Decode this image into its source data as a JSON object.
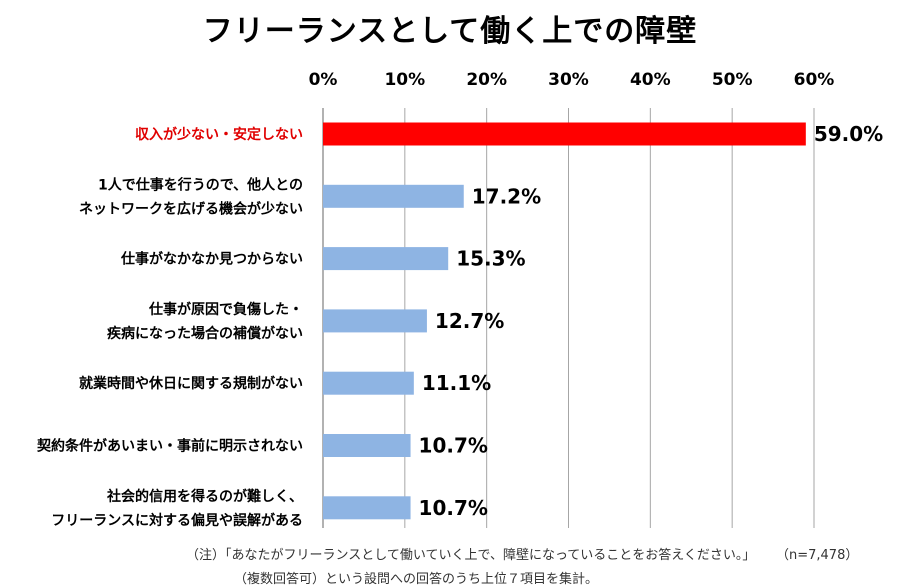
{
  "title": "フリーランスとして働く上での障壁",
  "chart_data": {
    "type": "bar",
    "orientation": "horizontal",
    "title": "フリーランスとして働く上での障壁",
    "categories": [
      [
        "収入が少ない・安定しない"
      ],
      [
        "1人で仕事を行うので、他人との",
        "ネットワークを広げる機会が少ない"
      ],
      [
        "仕事がなかなか見つからない"
      ],
      [
        "仕事が原因で負傷した・",
        "疾病になった場合の補償がない"
      ],
      [
        "就業時間や休日に関する規制がない"
      ],
      [
        "契約条件があいまい・事前に明示されない"
      ],
      [
        "社会的信用を得るのが難しく、",
        "フリーランスに対する偏見や誤解がある"
      ]
    ],
    "values": [
      59.0,
      17.2,
      15.3,
      12.7,
      11.1,
      10.7,
      10.7
    ],
    "value_labels": [
      "59.0%",
      "17.2%",
      "15.3%",
      "12.7%",
      "11.1%",
      "10.7%",
      "10.7%"
    ],
    "xlim": [
      0,
      60
    ],
    "xticks": [
      0,
      10,
      20,
      30,
      40,
      50,
      60
    ],
    "xtick_labels": [
      "0%",
      "10%",
      "20%",
      "30%",
      "40%",
      "50%",
      "60%"
    ],
    "axis_position": "top",
    "grid": true,
    "highlight_index": 0,
    "colors": {
      "bar": "#8eb4e3",
      "highlight": "#ff0000",
      "highlight_label": "#e00000",
      "grid": "#a6a6a6"
    }
  },
  "notes": {
    "line1": "（注）「あなたがフリーランスとして働いていく上で、障壁になっていることをお答えください。」",
    "line2": "（複数回答可）という設問への回答のうち上位７項目を集計。",
    "sample": "（n=7,478）"
  }
}
